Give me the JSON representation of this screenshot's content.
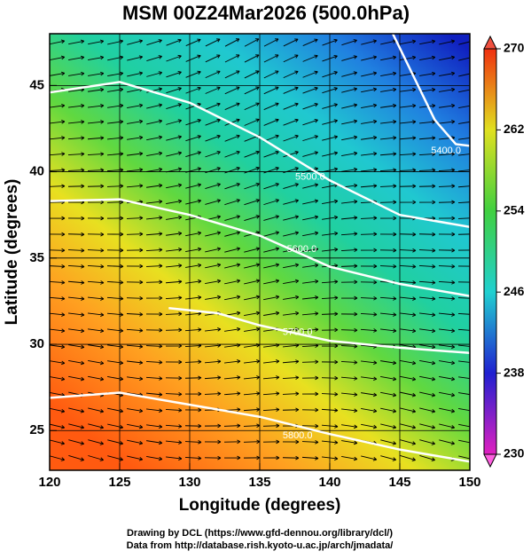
{
  "chart_data": {
    "type": "map",
    "title": "MSM 00Z24Mar2026 (500.0hPa)",
    "x_label": "Longitude (degrees)",
    "y_label": "Latitude  (degrees)",
    "xlim": [
      120,
      150
    ],
    "ylim": [
      22.7,
      48
    ],
    "xticks": [
      120,
      125,
      130,
      135,
      140,
      145,
      150
    ],
    "yticks": [
      25,
      30,
      35,
      40,
      45
    ],
    "grid": true,
    "colorbar": {
      "lim": [
        230,
        270
      ],
      "ticks": [
        230,
        238,
        246,
        254,
        262,
        270
      ]
    },
    "contours": [
      {
        "label": "5400.0",
        "lon": [
          144.5,
          146,
          147.5,
          149,
          150
        ],
        "lat": [
          48,
          45.5,
          43,
          41.6,
          41.5
        ],
        "label_at": [
          148.3,
          41.2
        ]
      },
      {
        "label": "5500.0",
        "lon": [
          120,
          125,
          130,
          135,
          140,
          145,
          150
        ],
        "lat": [
          44.6,
          45.2,
          44,
          42,
          39.5,
          37.5,
          36.8
        ],
        "label_at": [
          138.6,
          39.7
        ]
      },
      {
        "label": "5600.0",
        "lon": [
          120,
          125,
          130,
          135,
          140,
          145,
          150
        ],
        "lat": [
          38.3,
          38.4,
          37.5,
          36.3,
          34.5,
          33.5,
          32.8
        ],
        "label_at": [
          138,
          35.5
        ]
      },
      {
        "label": "5700.0",
        "lon": [
          128.5,
          132,
          135,
          140,
          145,
          150
        ],
        "lat": [
          32.1,
          31.8,
          31.1,
          30.2,
          29.8,
          29.5
        ],
        "label_at": [
          137.7,
          30.7
        ]
      },
      {
        "label": "5800.0",
        "lon": [
          120,
          125,
          130,
          135,
          140,
          145,
          150
        ],
        "lat": [
          26.9,
          27.2,
          26.5,
          25.8,
          24.8,
          23.9,
          23.2
        ],
        "label_at": [
          137.7,
          24.7
        ]
      }
    ],
    "footer": [
      "Drawing by DCL (https://www.gfd-dennou.org/library/dcl/)",
      "Data from http://database.rish.kyoto-u.ac.jp/arch/jmadata/"
    ]
  }
}
